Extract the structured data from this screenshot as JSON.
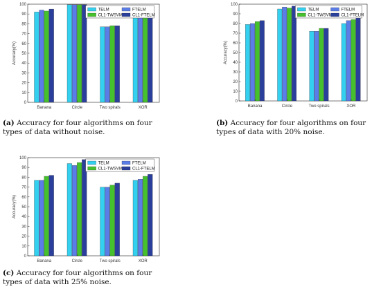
{
  "chart_data": [
    {
      "type": "bar",
      "categories": [
        "Banana",
        "Circle",
        "Two spirals",
        "XOR"
      ],
      "series": [
        {
          "name": "TELM",
          "values": [
            92,
            99.5,
            77,
            91
          ]
        },
        {
          "name": "FTELM",
          "values": [
            94,
            99.5,
            77,
            92
          ]
        },
        {
          "name": "CL1-TWSVM",
          "values": [
            93,
            99.5,
            78,
            92
          ]
        },
        {
          "name": "CL1-FTELM",
          "values": [
            95,
            99.5,
            78,
            92
          ]
        }
      ],
      "ylabel": "Accuracy(%)",
      "ylim": [
        0,
        100
      ],
      "yticks": [
        0,
        10,
        20,
        30,
        40,
        50,
        60,
        70,
        80,
        90,
        100
      ],
      "legend": "top"
    },
    {
      "type": "bar",
      "categories": [
        "Banana",
        "Circle",
        "Two spirals",
        "XOR"
      ],
      "series": [
        {
          "name": "TELM",
          "values": [
            79,
            95,
            72,
            80
          ]
        },
        {
          "name": "FTELM",
          "values": [
            80,
            97,
            72,
            83
          ]
        },
        {
          "name": "CL1-TWSVM",
          "values": [
            82,
            96,
            75,
            84
          ]
        },
        {
          "name": "CL1-FTELM",
          "values": [
            83,
            98,
            75,
            86
          ]
        }
      ],
      "ylabel": "Accuracy(%)",
      "ylim": [
        0,
        100
      ],
      "yticks": [
        0,
        10,
        20,
        30,
        40,
        50,
        60,
        70,
        80,
        90,
        100
      ],
      "legend": "top"
    },
    {
      "type": "bar",
      "categories": [
        "Banana",
        "Circle",
        "Two spirals",
        "XOR"
      ],
      "series": [
        {
          "name": "TELM",
          "values": [
            77,
            94,
            70,
            77
          ]
        },
        {
          "name": "FTELM",
          "values": [
            77,
            92,
            70,
            78
          ]
        },
        {
          "name": "CL1-TWSVM",
          "values": [
            81,
            95,
            72,
            81
          ]
        },
        {
          "name": "CL1-FTELM",
          "values": [
            82,
            98,
            74,
            83
          ]
        }
      ],
      "ylabel": "Accuracy(%)",
      "ylim": [
        0,
        100
      ],
      "yticks": [
        0,
        10,
        20,
        30,
        40,
        50,
        60,
        70,
        80,
        90,
        100
      ],
      "legend": "top"
    }
  ],
  "colors": [
    "#33d0ef",
    "#5b7de8",
    "#45c12e",
    "#2a3e9c"
  ],
  "captions": [
    {
      "label": "(a)",
      "text": "Accuracy for four algorithms on four types of data without noise."
    },
    {
      "label": "(b)",
      "text": "Accuracy for four algorithms on four types of data with 20% noise."
    },
    {
      "label": "(c)",
      "text": "Accuracy for four algorithms on four types of data with 25% noise."
    }
  ]
}
